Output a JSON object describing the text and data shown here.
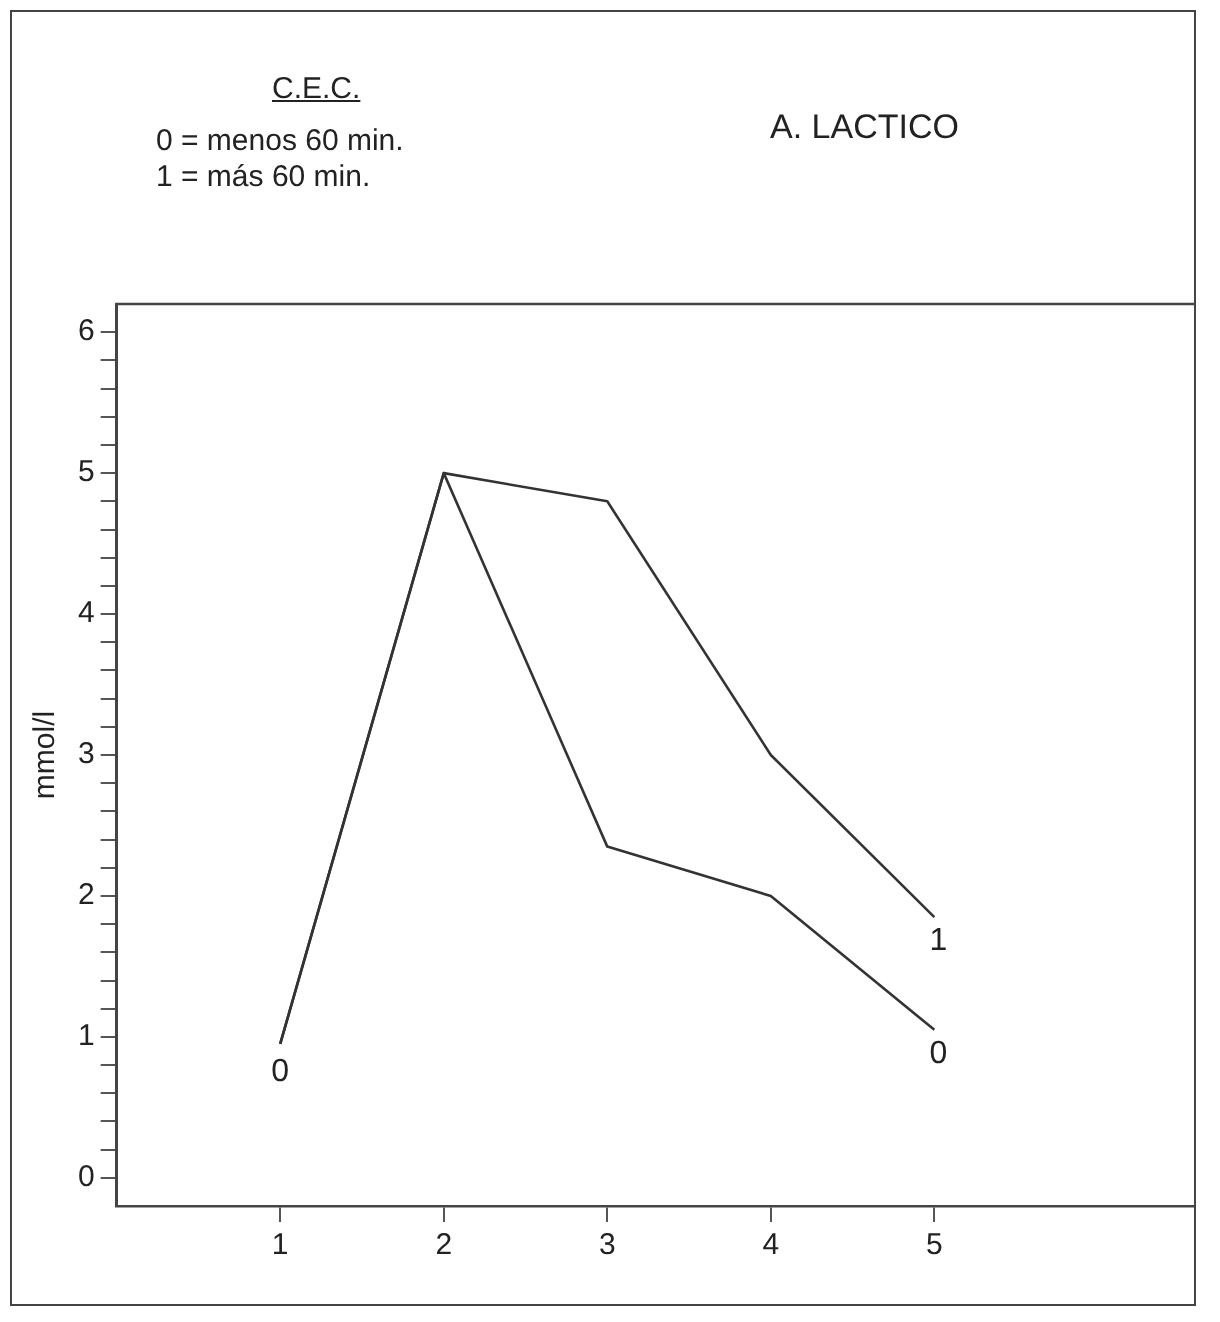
{
  "chart_data": {
    "type": "line",
    "title": "A. LACTICO",
    "ylabel": "mmol/l",
    "annotations": [
      "C.E.C.",
      "0 = menos 60 min.",
      "1 = más 60 min.",
      {
        "text": "0",
        "x": 1,
        "y": 0.95
      }
    ],
    "x": [
      1,
      2,
      3,
      4,
      5
    ],
    "series": [
      {
        "name": "0",
        "color": "#333333",
        "values": [
          0.95,
          5.0,
          2.35,
          2.0,
          1.05
        ]
      },
      {
        "name": "1",
        "color": "#333333",
        "values": [
          0.95,
          5.0,
          4.8,
          3.0,
          1.85
        ]
      }
    ],
    "xlim": [
      0,
      6.6
    ],
    "xticks": [
      1,
      2,
      3,
      4,
      5
    ],
    "ylim": [
      -0.2,
      6.2
    ],
    "yticks": [
      0,
      {
        "value": 0.2,
        "label": null
      },
      {
        "value": 0.4,
        "label": null
      },
      {
        "value": 0.6,
        "label": null
      },
      {
        "value": 0.8,
        "label": null
      },
      1,
      {
        "value": 1.2,
        "label": null
      },
      {
        "value": 1.4,
        "label": null
      },
      {
        "value": 1.6,
        "label": null
      },
      {
        "value": 1.8,
        "label": null
      },
      2,
      {
        "value": 2.2,
        "label": null
      },
      {
        "value": 2.4,
        "label": null
      },
      {
        "value": 2.6,
        "label": null
      },
      {
        "value": 2.8,
        "label": null
      },
      3,
      {
        "value": 3.2,
        "label": null
      },
      {
        "value": 3.4,
        "label": null
      },
      {
        "value": 3.6,
        "label": null
      },
      {
        "value": 3.8,
        "label": null
      },
      4,
      {
        "value": 4.2,
        "label": null
      },
      {
        "value": 4.4,
        "label": null
      },
      {
        "value": 4.6,
        "label": null
      },
      {
        "value": 4.8,
        "label": null
      },
      5,
      {
        "value": 5.2,
        "label": null
      },
      {
        "value": 5.4,
        "label": null
      },
      {
        "value": 5.6,
        "label": null
      },
      {
        "value": 5.8,
        "label": null
      },
      6
    ],
    "grid": false,
    "legend": false,
    "marker": "none",
    "line_style": "solid"
  }
}
